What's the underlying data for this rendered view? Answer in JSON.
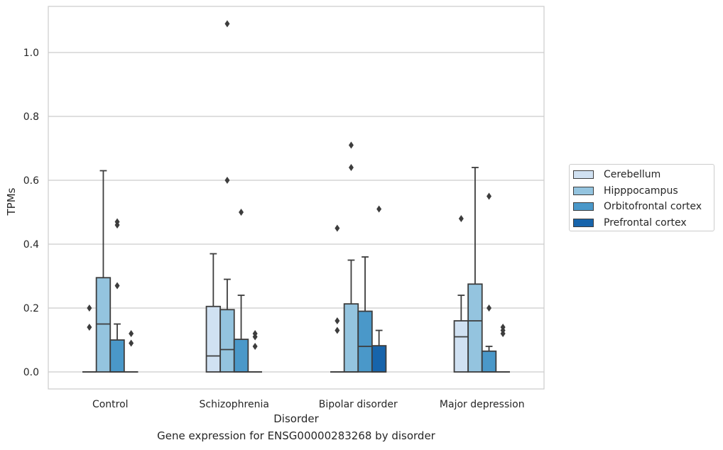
{
  "chart_data": {
    "type": "boxplot",
    "title": "",
    "caption": "Gene expression for ENSG00000283268 by disorder",
    "xlabel": "Disorder",
    "ylabel": "TPMs",
    "ylim": [
      -0.05,
      1.15
    ],
    "yticks": [
      0.0,
      0.2,
      0.4,
      0.6,
      0.8,
      1.0
    ],
    "ytick_labels": [
      "0.0",
      "0.2",
      "0.4",
      "0.6",
      "0.8",
      "1.0"
    ],
    "grid": "horizontal",
    "legend_position": "right-outside",
    "categories": [
      "Control",
      "Schizophrenia",
      "Bipolar disorder",
      "Major depression"
    ],
    "series": [
      {
        "name": "Cerebellum",
        "color": "#d0e1f2",
        "boxes": [
          {
            "min": 0.0,
            "q1": 0.0,
            "median": 0.0,
            "q3": 0.0,
            "max": 0.0,
            "outliers": [
              0.14,
              0.2
            ]
          },
          {
            "min": 0.0,
            "q1": 0.0,
            "median": 0.05,
            "q3": 0.205,
            "max": 0.37,
            "outliers": []
          },
          {
            "min": 0.0,
            "q1": 0.0,
            "median": 0.0,
            "q3": 0.0,
            "max": 0.0,
            "outliers": [
              0.13,
              0.16,
              0.45
            ]
          },
          {
            "min": 0.0,
            "q1": 0.0,
            "median": 0.11,
            "q3": 0.16,
            "max": 0.24,
            "outliers": [
              0.48
            ]
          }
        ]
      },
      {
        "name": "Hipppocampus",
        "color": "#94c4df",
        "boxes": [
          {
            "min": 0.0,
            "q1": 0.0,
            "median": 0.15,
            "q3": 0.295,
            "max": 0.63,
            "outliers": []
          },
          {
            "min": 0.0,
            "q1": 0.0,
            "median": 0.07,
            "q3": 0.195,
            "max": 0.29,
            "outliers": [
              0.6,
              1.09
            ]
          },
          {
            "min": 0.0,
            "q1": 0.0,
            "median": 0.0,
            "q3": 0.213,
            "max": 0.35,
            "outliers": [
              0.64,
              0.71
            ]
          },
          {
            "min": 0.0,
            "q1": 0.0,
            "median": 0.16,
            "q3": 0.275,
            "max": 0.64,
            "outliers": []
          }
        ]
      },
      {
        "name": "Orbitofrontal cortex",
        "color": "#4a98c9",
        "boxes": [
          {
            "min": 0.0,
            "q1": 0.0,
            "median": 0.0,
            "q3": 0.1,
            "max": 0.15,
            "outliers": [
              0.27,
              0.46,
              0.47
            ]
          },
          {
            "min": 0.0,
            "q1": 0.0,
            "median": 0.0,
            "q3": 0.102,
            "max": 0.24,
            "outliers": [
              0.5
            ]
          },
          {
            "min": 0.0,
            "q1": 0.0,
            "median": 0.08,
            "q3": 0.19,
            "max": 0.36,
            "outliers": []
          },
          {
            "min": 0.0,
            "q1": 0.0,
            "median": 0.0,
            "q3": 0.065,
            "max": 0.08,
            "outliers": [
              0.2,
              0.55
            ]
          }
        ]
      },
      {
        "name": "Prefrontal cortex",
        "color": "#1764ab",
        "boxes": [
          {
            "min": 0.0,
            "q1": 0.0,
            "median": 0.0,
            "q3": 0.0,
            "max": 0.0,
            "outliers": [
              0.09,
              0.12
            ]
          },
          {
            "min": 0.0,
            "q1": 0.0,
            "median": 0.0,
            "q3": 0.0,
            "max": 0.0,
            "outliers": [
              0.08,
              0.11,
              0.12
            ]
          },
          {
            "min": 0.0,
            "q1": 0.0,
            "median": 0.0,
            "q3": 0.082,
            "max": 0.13,
            "outliers": [
              0.51
            ]
          },
          {
            "min": 0.0,
            "q1": 0.0,
            "median": 0.0,
            "q3": 0.0,
            "max": 0.0,
            "outliers": [
              0.12,
              0.13,
              0.14
            ]
          }
        ]
      }
    ]
  }
}
